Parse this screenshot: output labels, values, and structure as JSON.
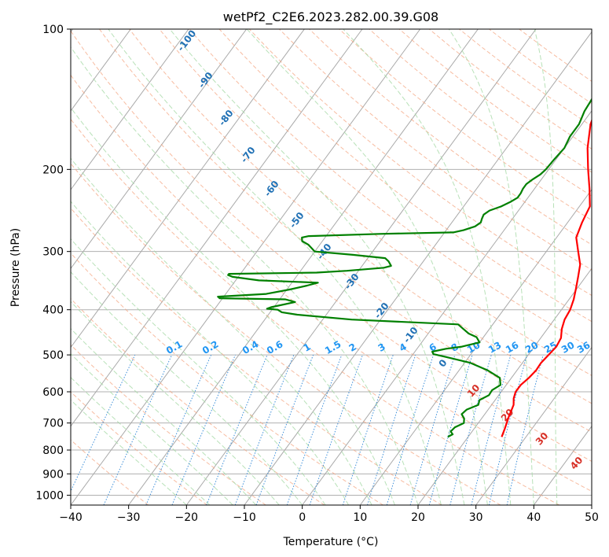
{
  "chart_data": {
    "type": "line",
    "chart_kind": "skew-t log-p",
    "title": "wetPf2_C2E6.2023.282.00.39.G08",
    "xlabel": "Temperature (°C)",
    "ylabel": "Pressure (hPa)",
    "xlim": [
      -40,
      50
    ],
    "ylim": [
      1050,
      100
    ],
    "y_scale": "log",
    "grid": true,
    "x_ticks": [
      -40,
      -30,
      -20,
      -10,
      0,
      10,
      20,
      30,
      40,
      50
    ],
    "y_ticks": [
      100,
      200,
      300,
      400,
      500,
      600,
      700,
      800,
      900,
      1000
    ],
    "colors": {
      "temperature": "#ff0000",
      "dewpoint": "#008000",
      "isotherm": "#999999",
      "dry_adiabat": "#f4a582",
      "moist_adiabat": "#a6d9a6",
      "mixing_ratio": "#3d8fd9",
      "dry_adiabat_label": "#d73027",
      "moist_adiabat_label": "#2171b5",
      "mixing_ratio_label": "#2196f3"
    },
    "series": [
      {
        "key": "temperature",
        "pressure": [
          750,
          720,
          680,
          640,
          620,
          600,
          580,
          560,
          540,
          520,
          500,
          480,
          460,
          440,
          420,
          400,
          380,
          360,
          340,
          320,
          300,
          280,
          260,
          240,
          220,
          200,
          180,
          160,
          140,
          130,
          120,
          110,
          100
        ],
        "values": [
          25.8,
          25.3,
          24.5,
          23.8,
          23.0,
          22.5,
          22.5,
          23.0,
          23.3,
          23.2,
          23.5,
          23.8,
          23.5,
          22.5,
          21.8,
          21.5,
          20.8,
          19.8,
          18.7,
          17.5,
          15.5,
          13.4,
          12.5,
          11.8,
          9.5,
          6.8,
          4.0,
          1.5,
          -0.2,
          -0.5,
          0.2,
          1.5,
          2.8
        ]
      },
      {
        "key": "dewpoint",
        "pressure": [
          750,
          740,
          730,
          715,
          700,
          685,
          670,
          655,
          640,
          625,
          610,
          595,
          580,
          570,
          560,
          540,
          520,
          505,
          498,
          492,
          485,
          480,
          470,
          458,
          450,
          440,
          430,
          420,
          410,
          405,
          400,
          398,
          395,
          385,
          380,
          378,
          375,
          370,
          362,
          355,
          350,
          346,
          340,
          337,
          335,
          333,
          330,
          325,
          322,
          315,
          310,
          305,
          300,
          295,
          290,
          285,
          280,
          278,
          275,
          273,
          270,
          265,
          260,
          255,
          250,
          245,
          240,
          235,
          230,
          225,
          220,
          215,
          210,
          205,
          200,
          190,
          180,
          170,
          160,
          150,
          140,
          130,
          120,
          110,
          100
        ],
        "values": [
          16.5,
          17.0,
          16.3,
          16.5,
          17.5,
          17.0,
          16.0,
          16.3,
          17.7,
          17.3,
          18.3,
          18.2,
          19.0,
          18.5,
          18.0,
          15.0,
          11.0,
          6.0,
          3.5,
          3.0,
          5.0,
          7.5,
          10.0,
          8.8,
          7.0,
          5.5,
          4.0,
          -15.0,
          -25.0,
          -28.0,
          -29.0,
          -31.0,
          -30.5,
          -27.0,
          -29.0,
          -40.5,
          -41.0,
          -33.0,
          -29.5,
          -27.0,
          -25.5,
          -36.0,
          -41.0,
          -42.0,
          -42.0,
          -27.0,
          -22.0,
          -16.0,
          -15.0,
          -16.0,
          -17.0,
          -23.0,
          -30.0,
          -31.0,
          -32.0,
          -33.5,
          -34.0,
          -33.0,
          -21.0,
          -8.5,
          -7.0,
          -5.5,
          -5.0,
          -5.3,
          -5.5,
          -5.0,
          -3.5,
          -2.5,
          -1.8,
          -1.8,
          -2.0,
          -2.0,
          -1.5,
          -0.8,
          -0.5,
          -0.3,
          0.0,
          -0.5,
          -0.5,
          -1.2,
          -1.5,
          -1.2,
          -0.5,
          0.8,
          2.0
        ]
      }
    ],
    "moist_adiabat_labels": [
      "-100",
      "-90",
      "-80",
      "-70",
      "-60",
      "-50",
      "-40",
      "-30",
      "-20",
      "-10",
      "0"
    ],
    "dry_adiabat_labels": [
      "10",
      "20",
      "30",
      "40"
    ],
    "mixing_ratio_labels": [
      "0.1",
      "0.2",
      "0.4",
      "0.6",
      "1",
      "1.5",
      "2",
      "3",
      "4",
      "6",
      "8",
      "10",
      "13",
      "16",
      "20",
      "25",
      "30",
      "36"
    ]
  }
}
